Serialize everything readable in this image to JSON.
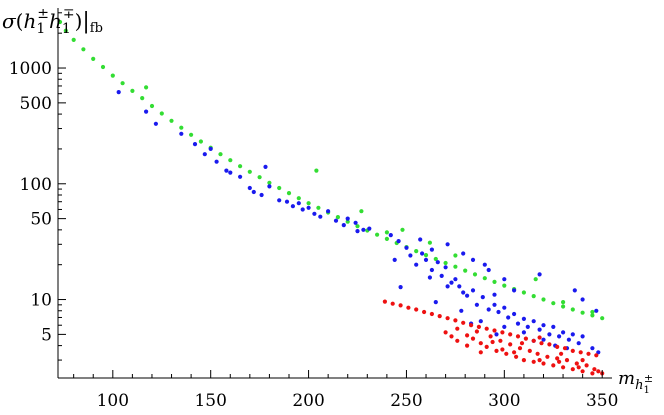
{
  "chart_data": {
    "type": "scatter",
    "title": "",
    "ylabel": "σ(h1± h1∓)|fb",
    "xlabel": "m h1±",
    "y_scale": "log",
    "xlim": [
      72,
      355
    ],
    "ylim": [
      2.1,
      3300
    ],
    "x_ticks": [
      100,
      150,
      200,
      250,
      300,
      350
    ],
    "x_tick_labels": [
      "100",
      "150",
      "200",
      "250",
      "300",
      "350"
    ],
    "y_ticks": [
      5,
      10,
      50,
      100,
      500,
      1000
    ],
    "y_tick_labels": [
      "5",
      "10",
      "50",
      "100",
      "500",
      "1000"
    ],
    "grid": false,
    "legend": "none",
    "series": [
      {
        "color": "#33dd33",
        "points": [
          [
            73,
            2500
          ],
          [
            76,
            2100
          ],
          [
            80,
            1750
          ],
          [
            85,
            1450
          ],
          [
            90,
            1200
          ],
          [
            95,
            1020
          ],
          [
            100,
            860
          ],
          [
            105,
            740
          ],
          [
            110,
            635
          ],
          [
            115,
            550
          ],
          [
            120,
            470
          ],
          [
            125,
            405
          ],
          [
            130,
            350
          ],
          [
            135,
            305
          ],
          [
            140,
            265
          ],
          [
            145,
            232
          ],
          [
            150,
            205
          ],
          [
            155,
            180
          ],
          [
            160,
            160
          ],
          [
            165,
            142
          ],
          [
            170,
            127
          ],
          [
            175,
            114
          ],
          [
            180,
            102
          ],
          [
            185,
            92
          ],
          [
            190,
            83
          ],
          [
            195,
            75
          ],
          [
            200,
            68
          ],
          [
            205,
            62
          ],
          [
            210,
            56.5
          ],
          [
            215,
            51.5
          ],
          [
            220,
            47
          ],
          [
            225,
            43
          ],
          [
            230,
            39.5
          ],
          [
            235,
            36.3
          ],
          [
            240,
            33.4
          ],
          [
            245,
            30.8
          ],
          [
            250,
            28.4
          ],
          [
            255,
            26.2
          ],
          [
            260,
            24.2
          ],
          [
            265,
            22.4
          ],
          [
            270,
            20.7
          ],
          [
            275,
            19.2
          ],
          [
            280,
            17.8
          ],
          [
            285,
            16.5
          ],
          [
            290,
            15.3
          ],
          [
            295,
            14.2
          ],
          [
            300,
            13.2
          ],
          [
            305,
            12.3
          ],
          [
            310,
            11.5
          ],
          [
            315,
            10.7
          ],
          [
            320,
            10
          ],
          [
            325,
            9.3
          ],
          [
            330,
            8.7
          ],
          [
            335,
            8.2
          ],
          [
            340,
            7.7
          ],
          [
            345,
            7.3
          ],
          [
            350,
            6.9
          ],
          [
            117,
            680
          ],
          [
            204,
            130
          ],
          [
            227,
            58
          ],
          [
            248,
            40
          ],
          [
            262,
            31
          ],
          [
            316,
            15
          ],
          [
            240,
            38
          ],
          [
            275,
            24
          ],
          [
            330,
            9.5
          ],
          [
            345,
            7.8
          ]
        ]
      },
      {
        "color": "#1a1aee",
        "points": [
          [
            103,
            620
          ],
          [
            117,
            420
          ],
          [
            122,
            330
          ],
          [
            135,
            270
          ],
          [
            142,
            220
          ],
          [
            147,
            180
          ],
          [
            153,
            155
          ],
          [
            158,
            130
          ],
          [
            150,
            200
          ],
          [
            160,
            125
          ],
          [
            165,
            115
          ],
          [
            170,
            92
          ],
          [
            172,
            85
          ],
          [
            176,
            80
          ],
          [
            178,
            140
          ],
          [
            180,
            95
          ],
          [
            185,
            72
          ],
          [
            189,
            70
          ],
          [
            192,
            64
          ],
          [
            195,
            68
          ],
          [
            197,
            60
          ],
          [
            200,
            62
          ],
          [
            203,
            55
          ],
          [
            206,
            52
          ],
          [
            210,
            58
          ],
          [
            214,
            48
          ],
          [
            218,
            44
          ],
          [
            220,
            50
          ],
          [
            224,
            46
          ],
          [
            228,
            40
          ],
          [
            231,
            41
          ],
          [
            225,
            39
          ],
          [
            242,
            36
          ],
          [
            246,
            32
          ],
          [
            250,
            28
          ],
          [
            252,
            24
          ],
          [
            255,
            20
          ],
          [
            258,
            25
          ],
          [
            260,
            22
          ],
          [
            263,
            18
          ],
          [
            266,
            21
          ],
          [
            268,
            16
          ],
          [
            270,
            19
          ],
          [
            273,
            14
          ],
          [
            275,
            15
          ],
          [
            277,
            13
          ],
          [
            279,
            11.5
          ],
          [
            281,
            10.8
          ],
          [
            284,
            12
          ],
          [
            286,
            9
          ],
          [
            289,
            10.5
          ],
          [
            292,
            8.2
          ],
          [
            295,
            9
          ],
          [
            297,
            7.8
          ],
          [
            300,
            8.5
          ],
          [
            302,
            7
          ],
          [
            305,
            7.5
          ],
          [
            307,
            6.2
          ],
          [
            310,
            6.8
          ],
          [
            312,
            5.8
          ],
          [
            315,
            6.5
          ],
          [
            318,
            5.5
          ],
          [
            320,
            6
          ],
          [
            323,
            5
          ],
          [
            325,
            5.8
          ],
          [
            328,
            4.8
          ],
          [
            330,
            5.2
          ],
          [
            333,
            4.5
          ],
          [
            335,
            5
          ],
          [
            338,
            4.2
          ],
          [
            340,
            4.8
          ],
          [
            345,
            3.8
          ],
          [
            348,
            3.5
          ],
          [
            265,
            9.5
          ],
          [
            278,
            8
          ],
          [
            288,
            6.5
          ],
          [
            300,
            5.8
          ],
          [
            310,
            5.2
          ],
          [
            320,
            4.5
          ],
          [
            332,
            3.8
          ],
          [
            305,
            12
          ],
          [
            295,
            11
          ],
          [
            318,
            16.5
          ],
          [
            290,
            20
          ],
          [
            284,
            22
          ],
          [
            279,
            25
          ],
          [
            271,
            30
          ],
          [
            263,
            27
          ],
          [
            257,
            33
          ],
          [
            247,
            12.8
          ],
          [
            244,
            22
          ],
          [
            271,
            13
          ],
          [
            262,
            15.5
          ],
          [
            300,
            15
          ],
          [
            292,
            18
          ],
          [
            283,
            6.2
          ],
          [
            296,
            5
          ],
          [
            315,
            4.4
          ],
          [
            326,
            4
          ],
          [
            340,
            10
          ],
          [
            336,
            12
          ],
          [
            347,
            8
          ]
        ]
      },
      {
        "color": "#ee1111",
        "points": [
          [
            239,
            9.6
          ],
          [
            243,
            9.2
          ],
          [
            247,
            8.9
          ],
          [
            251,
            8.5
          ],
          [
            255,
            8.2
          ],
          [
            259,
            7.8
          ],
          [
            263,
            7.5
          ],
          [
            267,
            7.2
          ],
          [
            271,
            6.9
          ],
          [
            275,
            6.6
          ],
          [
            279,
            6.3
          ],
          [
            283,
            6
          ],
          [
            287,
            5.8
          ],
          [
            291,
            5.6
          ],
          [
            295,
            5.4
          ],
          [
            299,
            5.2
          ],
          [
            303,
            5
          ],
          [
            307,
            4.8
          ],
          [
            311,
            4.6
          ],
          [
            315,
            4.4
          ],
          [
            319,
            4.2
          ],
          [
            323,
            4.1
          ],
          [
            327,
            3.9
          ],
          [
            331,
            3.8
          ],
          [
            335,
            3.6
          ],
          [
            339,
            3.5
          ],
          [
            343,
            3.4
          ],
          [
            347,
            3.3
          ],
          [
            270,
            5.2
          ],
          [
            276,
            5.6
          ],
          [
            281,
            4.9
          ],
          [
            284,
            4.6
          ],
          [
            288,
            4.2
          ],
          [
            291,
            3.9
          ],
          [
            293,
            4.8
          ],
          [
            296,
            3.6
          ],
          [
            298,
            4.4
          ],
          [
            301,
            3.4
          ],
          [
            303,
            4.1
          ],
          [
            306,
            3.2
          ],
          [
            308,
            3.8
          ],
          [
            310,
            3
          ],
          [
            313,
            3.6
          ],
          [
            315,
            2.9
          ],
          [
            317,
            3.4
          ],
          [
            320,
            2.8
          ],
          [
            322,
            3.2
          ],
          [
            325,
            2.7
          ],
          [
            327,
            3.1
          ],
          [
            330,
            2.6
          ],
          [
            332,
            3
          ],
          [
            335,
            2.5
          ],
          [
            337,
            2.8
          ],
          [
            340,
            2.4
          ],
          [
            342,
            2.7
          ],
          [
            345,
            2.3
          ],
          [
            348,
            2.4
          ],
          [
            350,
            2.3
          ],
          [
            286,
            5.3
          ],
          [
            294,
            4.3
          ],
          [
            299,
            3.7
          ],
          [
            305,
            3.5
          ],
          [
            318,
            3
          ],
          [
            328,
            2.9
          ],
          [
            338,
            2.6
          ],
          [
            346,
            2.5
          ],
          [
            318,
            4.7
          ],
          [
            340,
            3
          ],
          [
            329,
            3.4
          ],
          [
            309,
            4.2
          ],
          [
            288,
            3.5
          ],
          [
            281,
            4
          ],
          [
            276,
            4.4
          ],
          [
            273,
            4.8
          ]
        ]
      }
    ]
  }
}
